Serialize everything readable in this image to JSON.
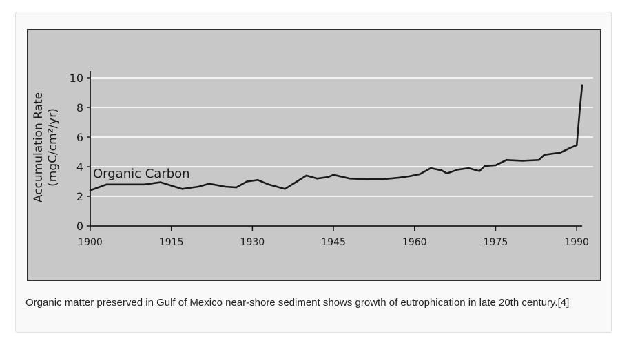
{
  "colors": {
    "plot_background": "#c8c8c8",
    "frame": "#2e2e2e",
    "line": "#1a1a1a",
    "gridline": "#ffffff",
    "caption_text": "#222222"
  },
  "caption": "Organic matter preserved in Gulf of Mexico near-shore sediment shows growth of eutrophication in late 20th century.[4]",
  "chart_data": {
    "type": "line",
    "title": "",
    "xlabel": "",
    "ylabel_lines": [
      "Accumulation Rate",
      "(mgC/cm²/yr)"
    ],
    "xlim": [
      1900,
      1991
    ],
    "ylim": [
      0,
      10
    ],
    "xticks": [
      1900,
      1915,
      1930,
      1945,
      1960,
      1975,
      1990
    ],
    "yticks": [
      0,
      2,
      4,
      6,
      8,
      10
    ],
    "grid": "horizontal",
    "legend": "none",
    "series": [
      {
        "name": "Organic Carbon",
        "x": [
          1900,
          1903,
          1906,
          1910,
          1913,
          1917,
          1920,
          1922,
          1925,
          1927,
          1929,
          1931,
          1933,
          1936,
          1938,
          1940,
          1942,
          1944,
          1945,
          1948,
          1951,
          1954,
          1957,
          1959,
          1961,
          1963,
          1965,
          1966,
          1968,
          1970,
          1972,
          1973,
          1975,
          1977,
          1980,
          1983,
          1984,
          1986,
          1987,
          1989,
          1990,
          1990.6,
          1991
        ],
        "y": [
          2.4,
          2.8,
          2.8,
          2.8,
          2.95,
          2.5,
          2.65,
          2.85,
          2.65,
          2.6,
          3.0,
          3.1,
          2.8,
          2.5,
          2.95,
          3.4,
          3.2,
          3.3,
          3.45,
          3.2,
          3.15,
          3.15,
          3.25,
          3.35,
          3.5,
          3.9,
          3.75,
          3.55,
          3.8,
          3.9,
          3.7,
          4.05,
          4.1,
          4.45,
          4.4,
          4.45,
          4.8,
          4.9,
          4.95,
          5.3,
          5.45,
          8.0,
          9.5
        ]
      }
    ]
  }
}
